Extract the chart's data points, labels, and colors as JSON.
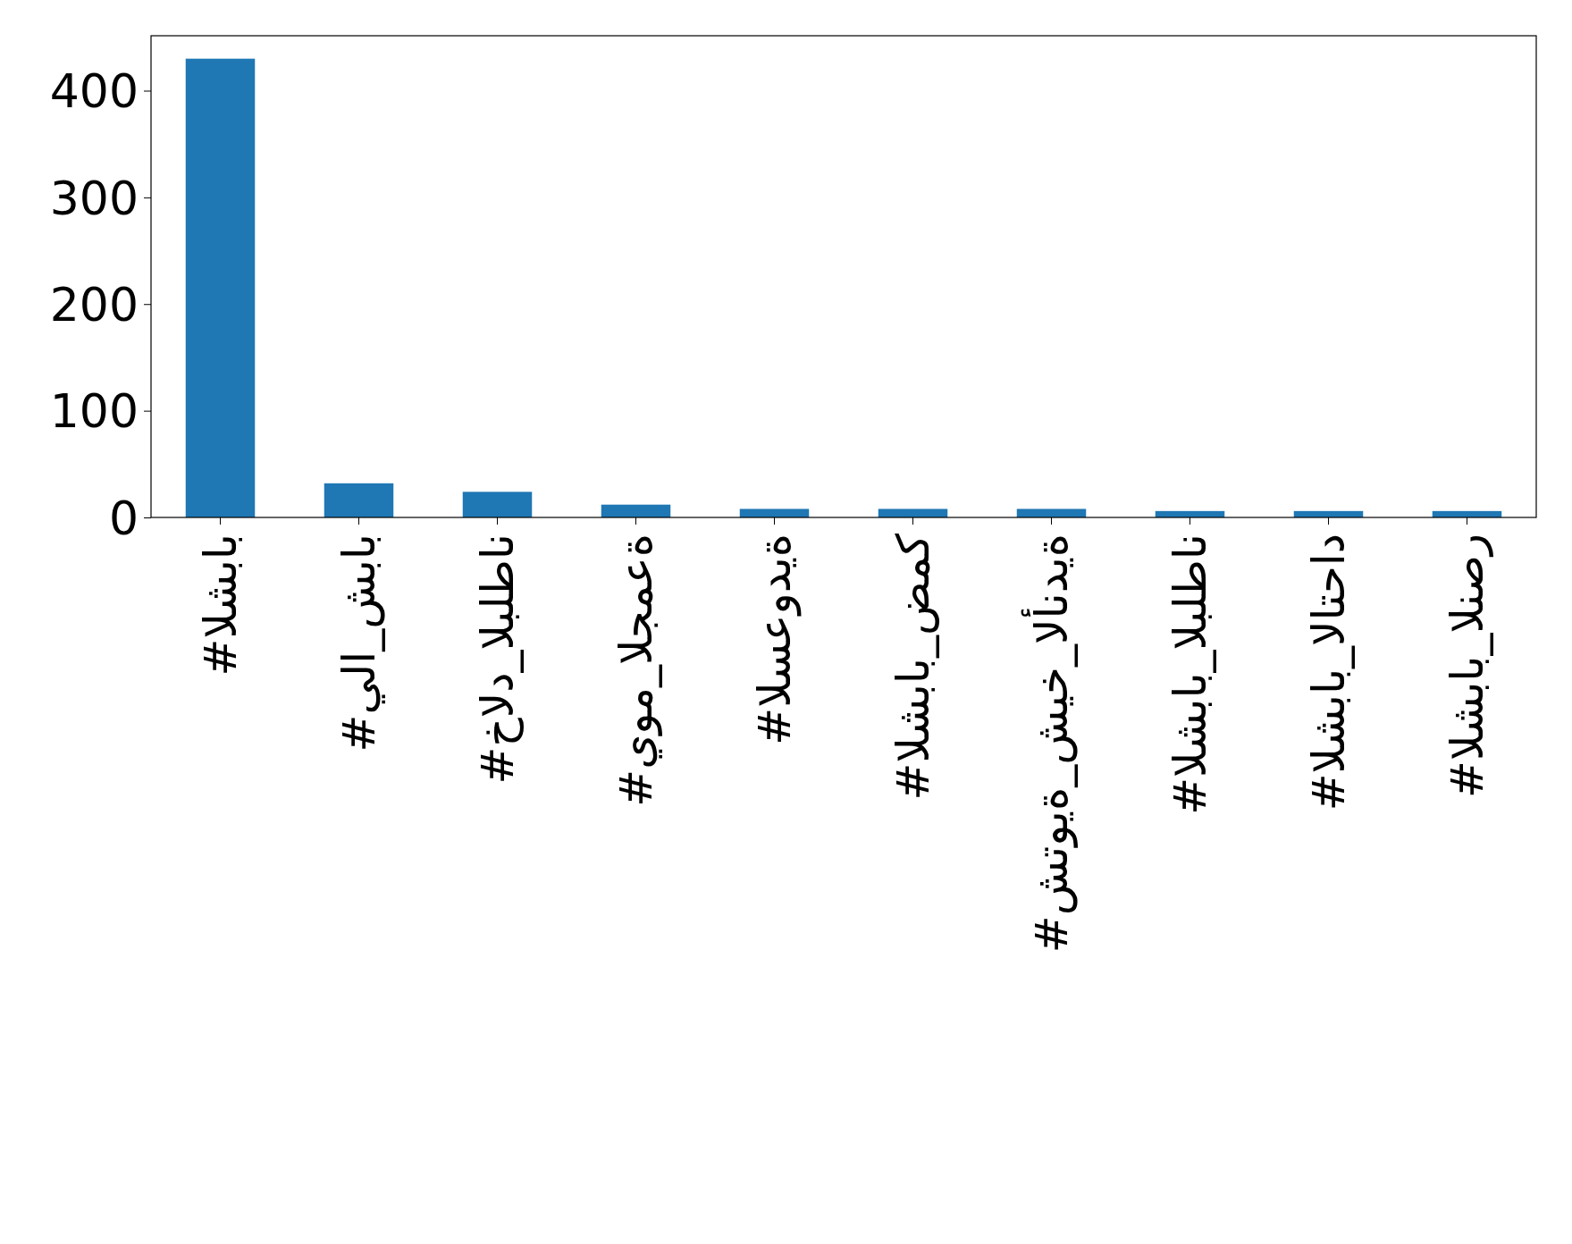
{
  "chart_data": {
    "type": "bar",
    "categories": [
      "#الشباب",
      "#يلا_شباب",
      "#خالد_البلطان",
      "#يوم_الجمعة",
      "#السعودية",
      "#الشباب_ضمك",
      "#شتوية_شيخ_الأندية",
      "#الشباب_البلطان",
      "#الشباب_الاتحاد",
      "#الشباب_النصر"
    ],
    "values": [
      430,
      32,
      24,
      12,
      8,
      8,
      8,
      6,
      6,
      6
    ],
    "color": "#1f77b4",
    "ylim": [
      0,
      451.5
    ],
    "yticks": [
      0,
      100,
      200,
      300,
      400
    ]
  }
}
